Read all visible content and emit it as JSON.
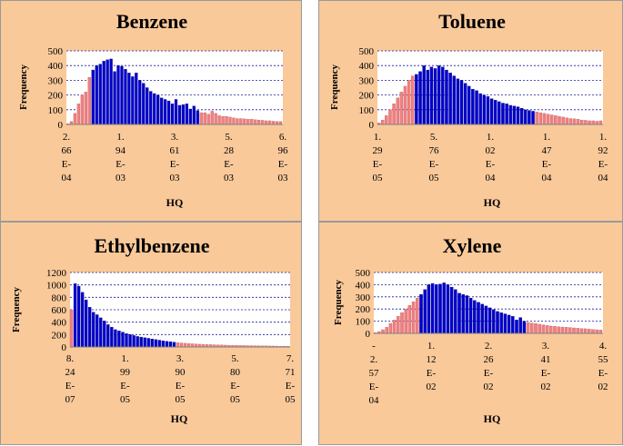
{
  "chart_data": [
    {
      "type": "bar",
      "title": "Benzene",
      "xlabel": "HQ",
      "ylabel": "Frequency",
      "ylim": [
        0,
        500
      ],
      "yticks": [
        "0",
        "100",
        "200",
        "300",
        "400",
        "500"
      ],
      "xticks": [
        [
          "2.",
          "66",
          "E-",
          "04"
        ],
        [
          "1.",
          "94",
          "E-",
          "03"
        ],
        [
          "3.",
          "61",
          "E-",
          "03"
        ],
        [
          "5.",
          "28",
          "E-",
          "03"
        ],
        [
          "6.",
          "96",
          "E-",
          "03"
        ]
      ],
      "colors": {
        "outer": "#f08080",
        "inner": "#0000cd"
      },
      "highlight_range": [
        7,
        36
      ],
      "values": [
        5,
        20,
        75,
        140,
        200,
        220,
        320,
        370,
        400,
        410,
        430,
        440,
        445,
        360,
        400,
        395,
        375,
        350,
        325,
        350,
        300,
        280,
        250,
        225,
        210,
        200,
        180,
        170,
        160,
        140,
        170,
        130,
        135,
        140,
        105,
        125,
        95,
        80,
        80,
        70,
        90,
        75,
        60,
        55,
        55,
        50,
        45,
        40,
        40,
        38,
        35,
        35,
        32,
        30,
        28,
        25,
        25,
        22,
        20,
        20
      ]
    },
    {
      "type": "bar",
      "title": "Toluene",
      "xlabel": "HQ",
      "ylabel": "Frequency",
      "ylim": [
        0,
        500
      ],
      "yticks": [
        "0",
        "100",
        "200",
        "300",
        "400",
        "500"
      ],
      "xticks": [
        [
          "1.",
          "29",
          "E-",
          "05"
        ],
        [
          "5.",
          "76",
          "E-",
          "05"
        ],
        [
          "1.",
          "02",
          "E-",
          "04"
        ],
        [
          "1.",
          "47",
          "E-",
          "04"
        ],
        [
          "1.",
          "92",
          "E-",
          "04"
        ]
      ],
      "colors": {
        "outer": "#f08080",
        "inner": "#0000cd"
      },
      "highlight_range": [
        10,
        41
      ],
      "values": [
        10,
        30,
        60,
        100,
        140,
        180,
        220,
        260,
        300,
        330,
        340,
        360,
        400,
        370,
        390,
        380,
        400,
        390,
        370,
        350,
        330,
        310,
        300,
        280,
        260,
        240,
        230,
        210,
        200,
        190,
        175,
        165,
        155,
        145,
        140,
        130,
        125,
        120,
        110,
        100,
        95,
        90,
        85,
        80,
        75,
        70,
        65,
        60,
        55,
        50,
        45,
        40,
        38,
        35,
        30,
        28,
        25,
        25,
        22,
        25
      ]
    },
    {
      "type": "bar",
      "title": "Ethylbenzene",
      "xlabel": "HQ",
      "ylabel": "Frequency",
      "ylim": [
        0,
        1200
      ],
      "yticks": [
        "0",
        "200",
        "400",
        "600",
        "800",
        "1000",
        "1200"
      ],
      "xticks": [
        [
          "8.",
          "24",
          "E-",
          "07"
        ],
        [
          "1.",
          "99",
          "E-",
          "05"
        ],
        [
          "3.",
          "90",
          "E-",
          "05"
        ],
        [
          "5.",
          "80",
          "E-",
          "05"
        ],
        [
          "7.",
          "71",
          "E-",
          "05"
        ]
      ],
      "colors": {
        "outer": "#f08080",
        "inner": "#0000cd"
      },
      "highlight_range": [
        1,
        28
      ],
      "values": [
        600,
        1020,
        980,
        880,
        760,
        640,
        560,
        520,
        470,
        420,
        360,
        320,
        280,
        260,
        240,
        215,
        200,
        185,
        170,
        160,
        150,
        140,
        130,
        120,
        110,
        100,
        92,
        85,
        78,
        70,
        65,
        60,
        56,
        52,
        48,
        45,
        42,
        40,
        38,
        36,
        34,
        32,
        30,
        28,
        26,
        25,
        24,
        23,
        22,
        21,
        20,
        19,
        18,
        17,
        16,
        15,
        14,
        13,
        12,
        12
      ]
    },
    {
      "type": "bar",
      "title": "Xylene",
      "xlabel": "HQ",
      "ylabel": "Frequency",
      "ylim": [
        0,
        500
      ],
      "yticks": [
        "0",
        "100",
        "200",
        "300",
        "400",
        "500"
      ],
      "xticks": [
        [
          "-",
          "2.",
          "57",
          "E-",
          "04"
        ],
        [
          "1.",
          "12",
          "E-",
          "02"
        ],
        [
          "2.",
          "26",
          "E-",
          "02"
        ],
        [
          "3.",
          "41",
          "E-",
          "02"
        ],
        [
          "4.",
          "55",
          "E-",
          "02"
        ]
      ],
      "colors": {
        "outer": "#f08080",
        "inner": "#0000cd"
      },
      "highlight_range": [
        12,
        39
      ],
      "values": [
        5,
        15,
        30,
        50,
        80,
        110,
        140,
        170,
        200,
        230,
        260,
        290,
        320,
        360,
        400,
        410,
        400,
        405,
        415,
        400,
        380,
        360,
        330,
        320,
        310,
        290,
        270,
        255,
        240,
        225,
        210,
        195,
        180,
        170,
        160,
        150,
        140,
        110,
        130,
        100,
        90,
        85,
        80,
        75,
        70,
        65,
        60,
        58,
        55,
        52,
        50,
        48,
        45,
        42,
        40,
        38,
        35,
        32,
        30,
        28
      ]
    }
  ]
}
